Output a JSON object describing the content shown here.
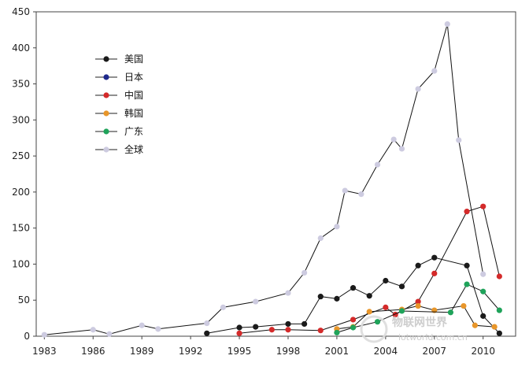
{
  "chart_data": {
    "type": "line",
    "ylim": [
      0,
      450
    ],
    "yticks": [
      0,
      50,
      100,
      150,
      200,
      250,
      300,
      350,
      400,
      450
    ],
    "xlim": [
      1982.5,
      2012.0
    ],
    "xticks": [
      1983,
      1986,
      1989,
      1992,
      1995,
      1998,
      2001,
      2004,
      2007,
      2010
    ],
    "legend": "top-left",
    "grid": false,
    "series": [
      {
        "name": "美国",
        "color": "#1a1a1a",
        "points": [
          [
            1993,
            4
          ],
          [
            1995,
            12
          ],
          [
            1996,
            13
          ],
          [
            1998,
            17
          ],
          [
            1999,
            17
          ],
          [
            2000,
            55
          ],
          [
            2001,
            52
          ],
          [
            2002,
            67
          ],
          [
            2003,
            56
          ],
          [
            2004,
            77
          ],
          [
            2005,
            69
          ],
          [
            2006,
            98
          ],
          [
            2007,
            109
          ],
          [
            2009,
            98
          ],
          [
            2010,
            28
          ],
          [
            2011,
            4
          ]
        ]
      },
      {
        "name": "日本",
        "color": "#1f2a8c",
        "points": []
      },
      {
        "name": "中国",
        "color": "#d42a2a",
        "points": [
          [
            1995,
            4
          ],
          [
            1997,
            9
          ],
          [
            1998,
            9
          ],
          [
            2000,
            8
          ],
          [
            2002,
            23
          ],
          [
            2004,
            40
          ],
          [
            2004.6,
            30
          ],
          [
            2006,
            48
          ],
          [
            2007,
            87
          ],
          [
            2009,
            173
          ],
          [
            2010,
            180
          ],
          [
            2011,
            83
          ]
        ]
      },
      {
        "name": "韩国",
        "color": "#e8962a",
        "points": [
          [
            2001,
            10
          ],
          [
            2002,
            13
          ],
          [
            2003,
            34
          ],
          [
            2005,
            37
          ],
          [
            2006,
            42
          ],
          [
            2007,
            36
          ],
          [
            2008.8,
            42
          ],
          [
            2009.5,
            15
          ],
          [
            2010.7,
            13
          ]
        ]
      },
      {
        "name": "广东",
        "color": "#1fa35a",
        "points": [
          [
            2001,
            5
          ],
          [
            2002,
            12
          ],
          [
            2003.5,
            20
          ],
          [
            2005,
            35
          ],
          [
            2008,
            33
          ],
          [
            2009,
            72
          ],
          [
            2010,
            62
          ],
          [
            2011,
            36
          ]
        ]
      },
      {
        "name": "全球",
        "color": "#cdcbe0",
        "points": [
          [
            1983,
            2
          ],
          [
            1986,
            9
          ],
          [
            1987,
            3
          ],
          [
            1989,
            15
          ],
          [
            1990,
            10
          ],
          [
            1993,
            18
          ],
          [
            1994,
            40
          ],
          [
            1996,
            48
          ],
          [
            1998,
            60
          ],
          [
            1999,
            88
          ],
          [
            2000,
            136
          ],
          [
            2001,
            152
          ],
          [
            2001.5,
            202
          ],
          [
            2002.5,
            197
          ],
          [
            2003.5,
            238
          ],
          [
            2004.5,
            273
          ],
          [
            2005,
            260
          ],
          [
            2006,
            343
          ],
          [
            2007,
            368
          ],
          [
            2007.8,
            433
          ],
          [
            2008.5,
            272
          ],
          [
            2010,
            86
          ]
        ]
      }
    ]
  },
  "watermark": {
    "text": "物联网世界",
    "url": "iotworld.com.cn"
  }
}
